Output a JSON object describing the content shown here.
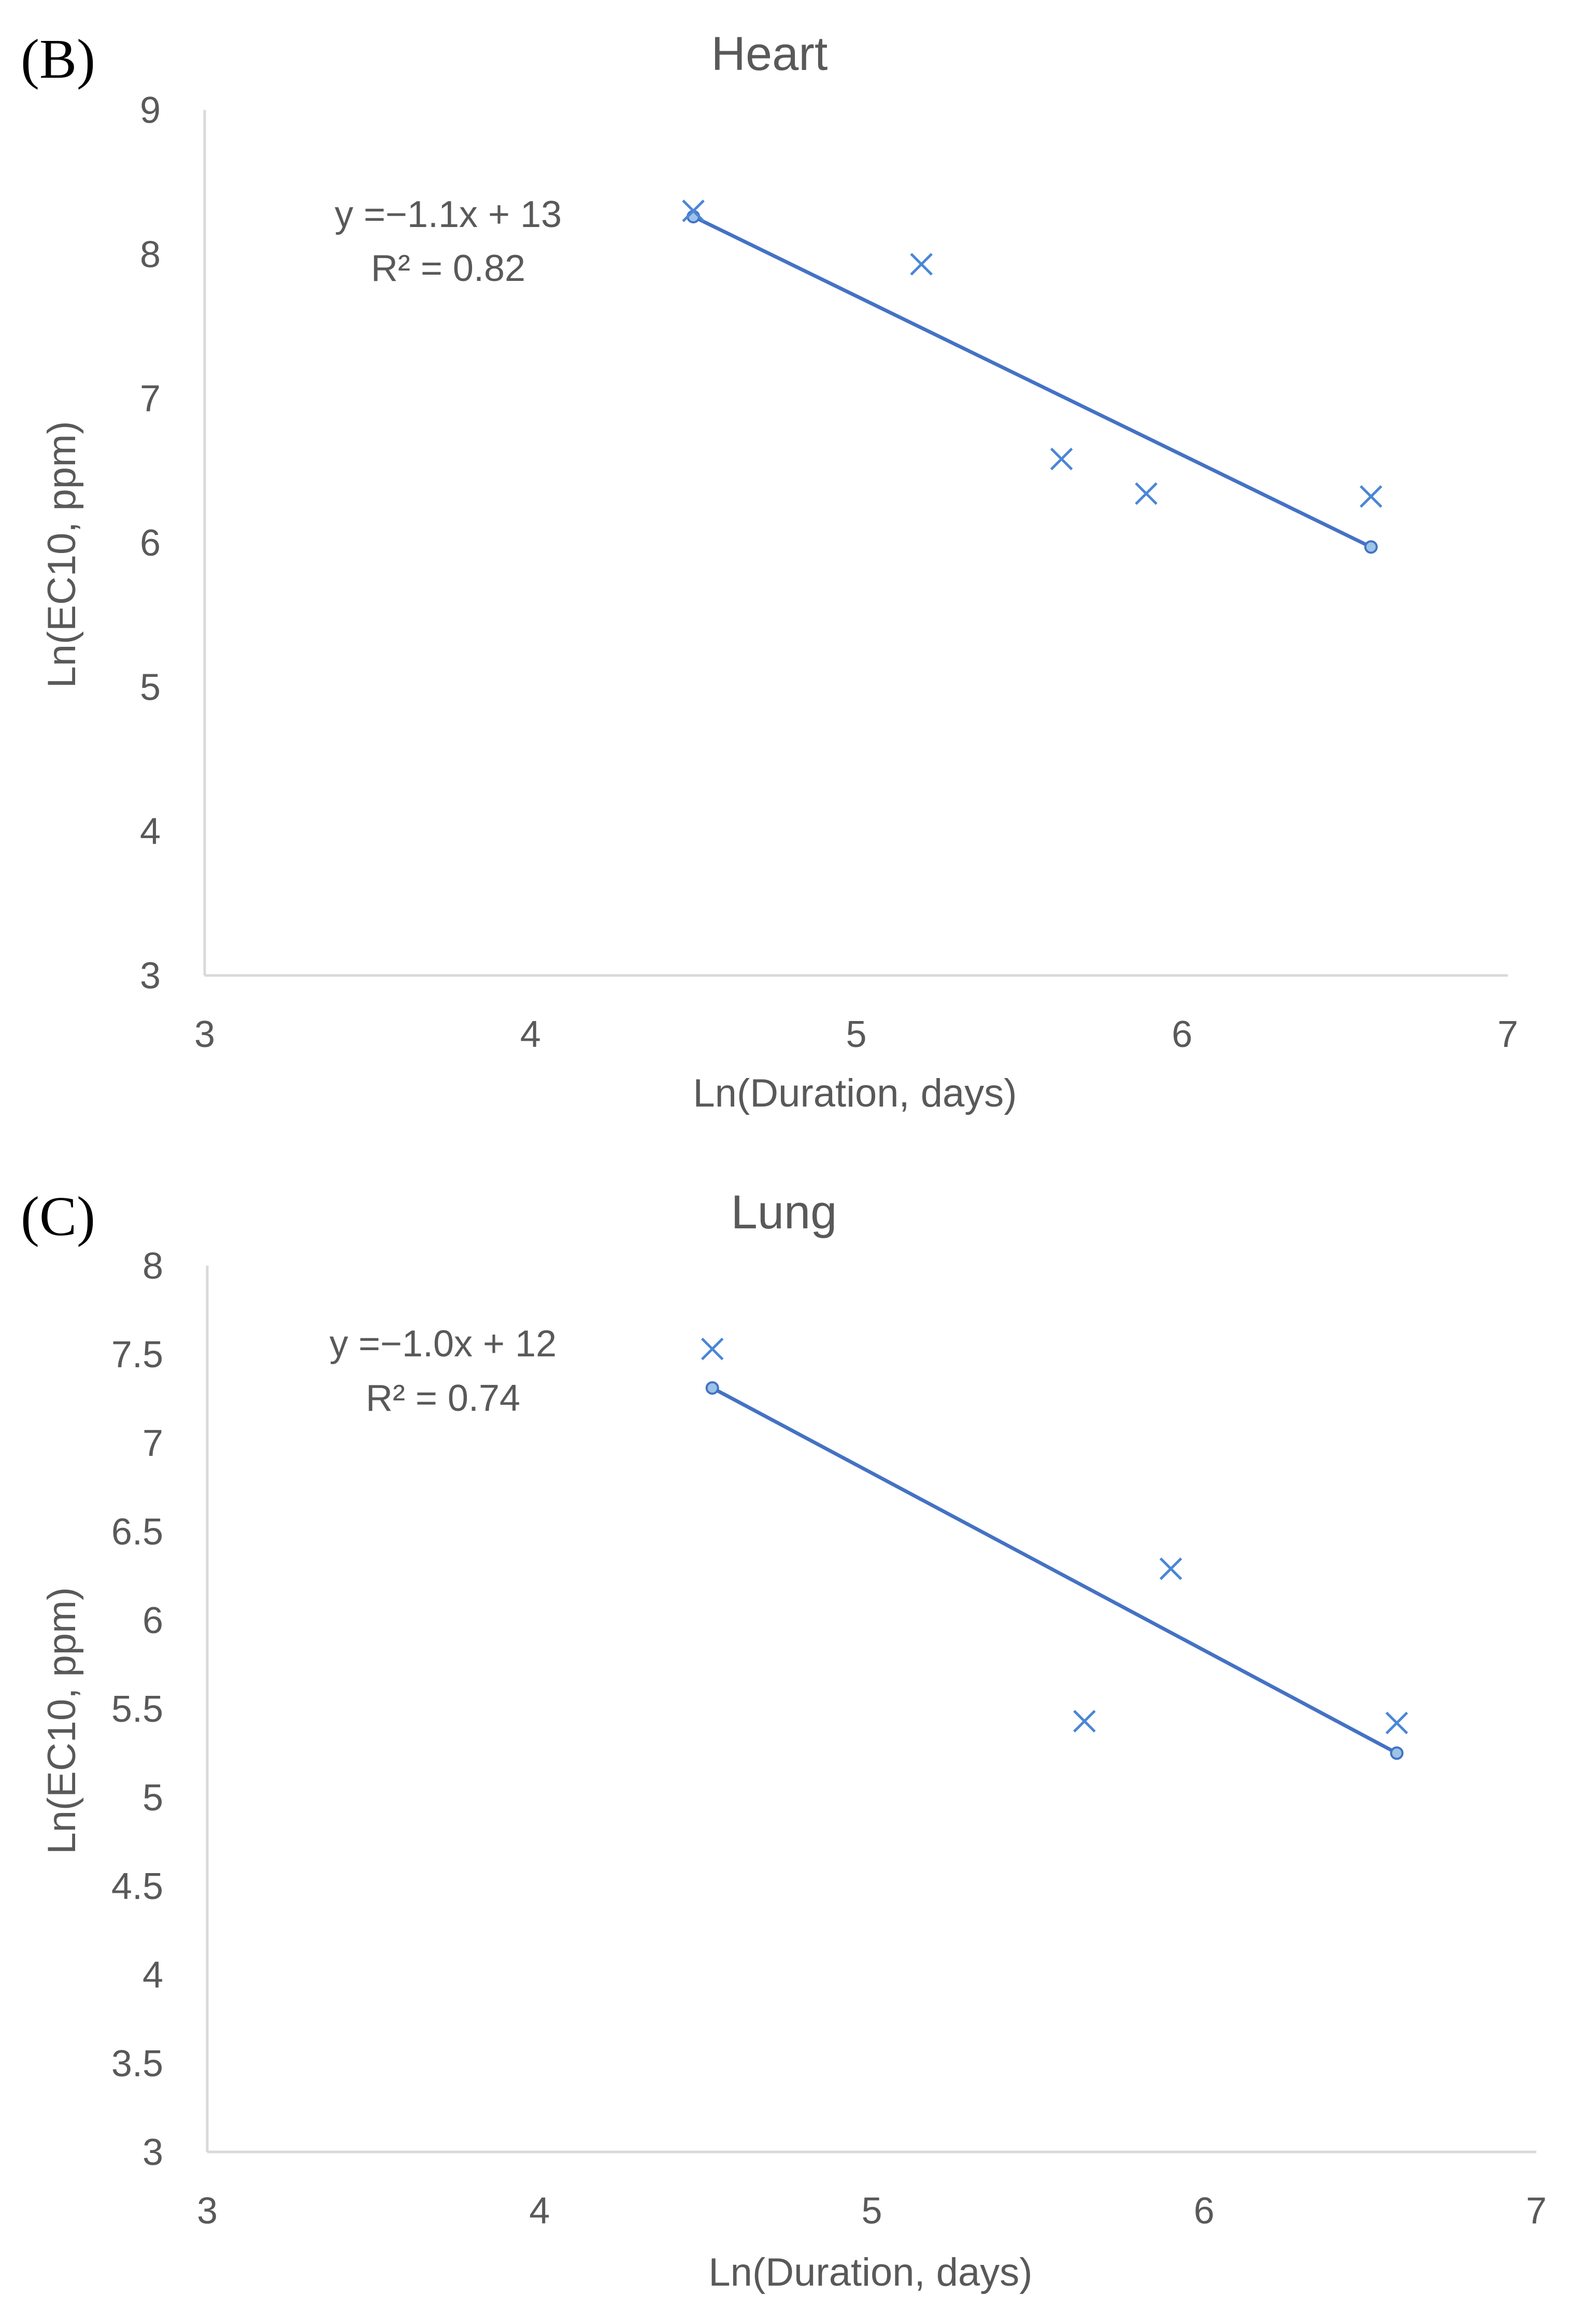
{
  "chart_data": [
    {
      "panel_label": "(B)",
      "type": "scatter",
      "title": "Heart",
      "xlabel": "Ln(Duration, days)",
      "ylabel": "Ln(EC10, ppm)",
      "xlim": [
        3,
        7
      ],
      "ylim": [
        3,
        9
      ],
      "x_ticks": [
        3,
        4,
        5,
        6,
        7
      ],
      "y_ticks": [
        3,
        4,
        5,
        6,
        7,
        8,
        9
      ],
      "x_tick_labels": [
        "3",
        "4",
        "5",
        "6",
        "7"
      ],
      "y_tick_labels": [
        "3",
        "4",
        "5",
        "6",
        "7",
        "8",
        "9"
      ],
      "grid": false,
      "series": [
        {
          "name": "data",
          "marker": "x",
          "points": [
            {
              "x": 4.5,
              "y": 8.3
            },
            {
              "x": 5.2,
              "y": 7.93
            },
            {
              "x": 5.63,
              "y": 6.58
            },
            {
              "x": 5.89,
              "y": 6.34
            },
            {
              "x": 6.58,
              "y": 6.32
            }
          ]
        },
        {
          "name": "linear fit",
          "type": "line",
          "points": [
            {
              "x": 4.5,
              "y": 8.26
            },
            {
              "x": 6.58,
              "y": 5.97
            }
          ]
        }
      ],
      "equation": "y =−1.1x + 13",
      "r_squared": "R² = 0.82"
    },
    {
      "panel_label": "(C)",
      "type": "scatter",
      "title": "Lung",
      "xlabel": "Ln(Duration, days)",
      "ylabel": "Ln(EC10, ppm)",
      "xlim": [
        3,
        7
      ],
      "ylim": [
        3,
        8
      ],
      "x_ticks": [
        3,
        4,
        5,
        6,
        7
      ],
      "y_ticks": [
        3,
        3.5,
        4,
        4.5,
        5,
        5.5,
        6,
        6.5,
        7,
        7.5,
        8
      ],
      "x_tick_labels": [
        "3",
        "4",
        "5",
        "6",
        "7"
      ],
      "y_tick_labels": [
        "3",
        "3.5",
        "4",
        "4.5",
        "5",
        "5.5",
        "6",
        "6.5",
        "7",
        "7.5",
        "8"
      ],
      "grid": false,
      "series": [
        {
          "name": "data",
          "marker": "x",
          "points": [
            {
              "x": 4.52,
              "y": 7.53
            },
            {
              "x": 5.64,
              "y": 5.43
            },
            {
              "x": 5.9,
              "y": 6.29
            },
            {
              "x": 6.58,
              "y": 5.42
            }
          ]
        },
        {
          "name": "linear fit",
          "type": "line",
          "points": [
            {
              "x": 4.52,
              "y": 7.31
            },
            {
              "x": 6.58,
              "y": 5.25
            }
          ]
        }
      ],
      "equation": "y =−1.0x + 12",
      "r_squared": "R² = 0.74"
    }
  ],
  "style": {
    "marker_color": "#4a86d8",
    "line_color": "#4472c4",
    "axis_color": "#d9d9d9",
    "text_color": "#595959"
  }
}
